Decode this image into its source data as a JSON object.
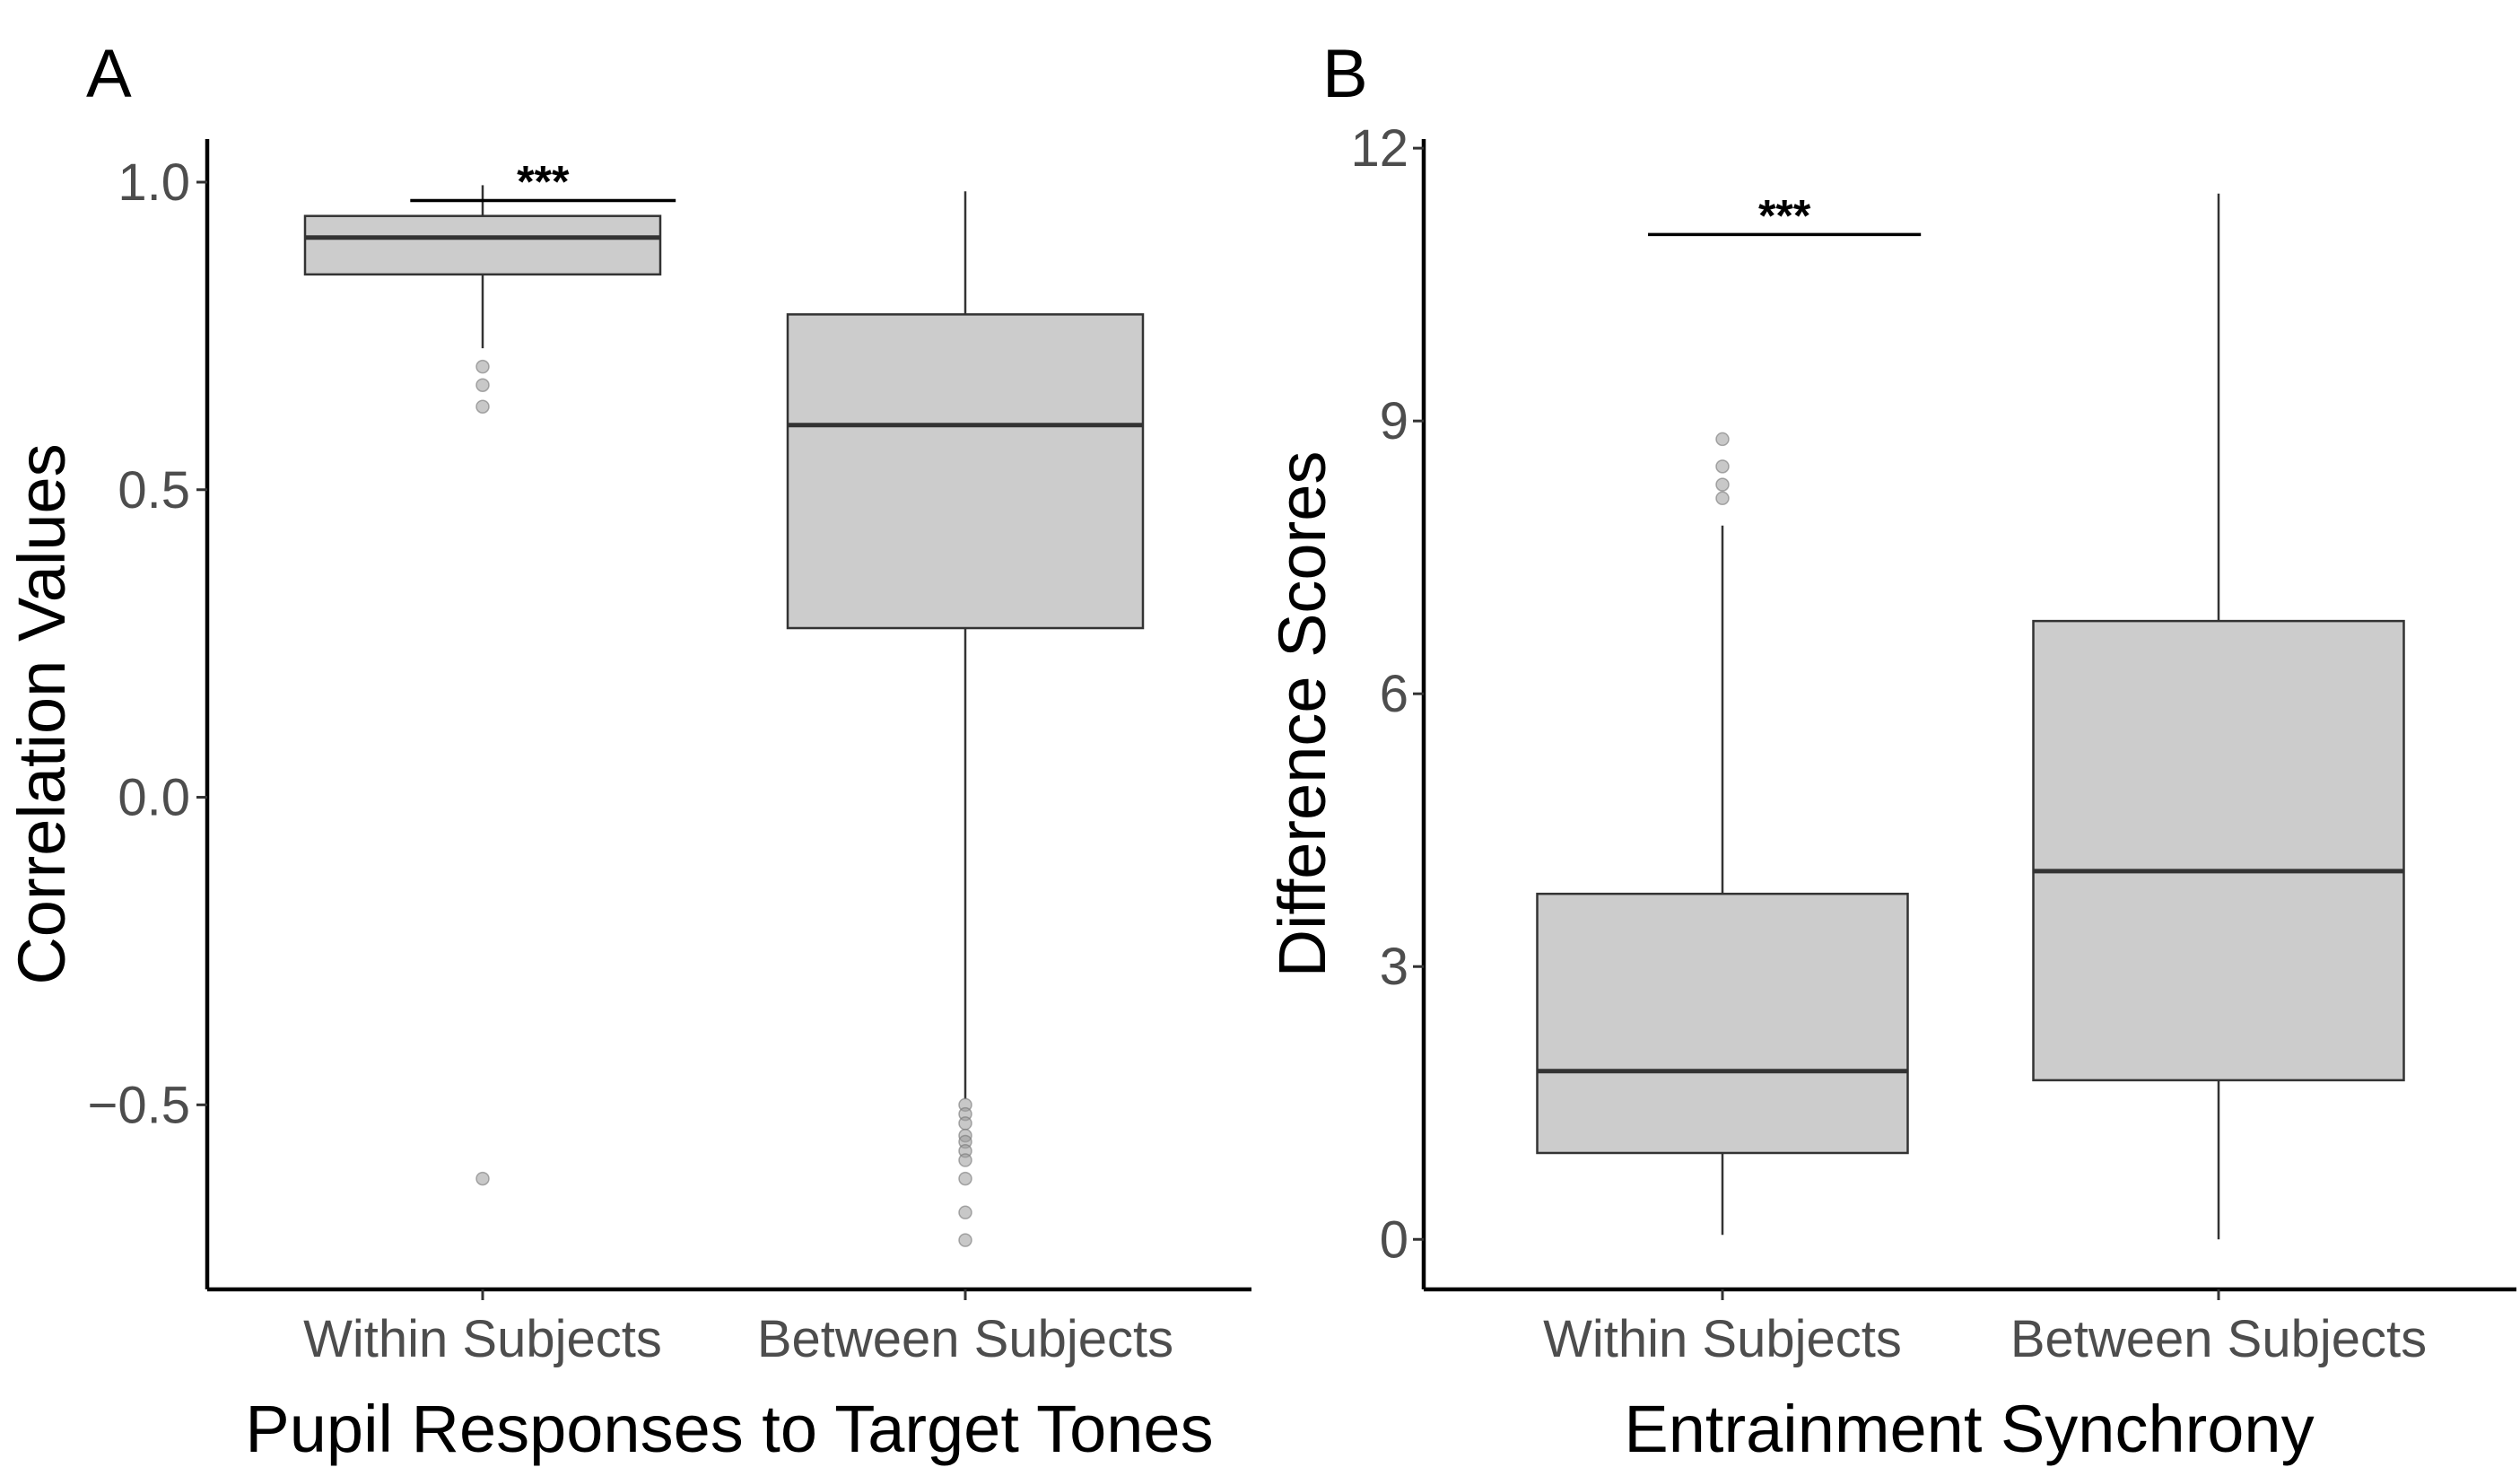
{
  "chart_data": [
    {
      "panel": "A",
      "type": "box",
      "xlabel": "Pupil Responses to Target Tones",
      "ylabel": "Correlation Values",
      "categories": [
        "Within Subjects",
        "Between Subjects"
      ],
      "ylim": [
        -0.8,
        1.07
      ],
      "yticks": [
        {
          "value": -0.5,
          "label": "−0.5"
        },
        {
          "value": 0.0,
          "label": "0.0"
        },
        {
          "value": 0.5,
          "label": "0.5"
        },
        {
          "value": 1.0,
          "label": "1.0"
        }
      ],
      "boxes": [
        {
          "category": "Within Subjects",
          "whisker_low": 0.73,
          "q1": 0.85,
          "median": 0.91,
          "q3": 0.945,
          "whisker_high": 0.995,
          "outliers": [
            0.7,
            0.67,
            0.635,
            -0.62
          ]
        },
        {
          "category": "Between Subjects",
          "whisker_low": -0.49,
          "q1": 0.275,
          "median": 0.605,
          "q3": 0.785,
          "whisker_high": 0.985,
          "outliers": [
            -0.5,
            -0.515,
            -0.53,
            -0.55,
            -0.56,
            -0.575,
            -0.59,
            -0.62,
            -0.675,
            -0.72
          ]
        }
      ],
      "significance": {
        "label": "***",
        "y": 0.97,
        "from": 0.55,
        "to": 1.45
      },
      "grid": false
    },
    {
      "panel": "B",
      "type": "box",
      "xlabel": "Entrainment Synchrony",
      "ylabel": "Difference Scores",
      "categories": [
        "Within Subjects",
        "Between Subjects"
      ],
      "ylim": [
        -0.55,
        12.1
      ],
      "yticks": [
        {
          "value": 0,
          "label": "0"
        },
        {
          "value": 3,
          "label": "3"
        },
        {
          "value": 6,
          "label": "6"
        },
        {
          "value": 9,
          "label": "9"
        },
        {
          "value": 12,
          "label": "12"
        }
      ],
      "boxes": [
        {
          "category": "Within Subjects",
          "whisker_low": 0.05,
          "q1": 0.95,
          "median": 1.85,
          "q3": 3.8,
          "whisker_high": 7.85,
          "outliers": [
            8.15,
            8.3,
            8.5,
            8.8
          ]
        },
        {
          "category": "Between Subjects",
          "whisker_low": 0.0,
          "q1": 1.75,
          "median": 4.05,
          "q3": 6.8,
          "whisker_high": 11.5,
          "outliers": []
        }
      ],
      "significance": {
        "label": "***",
        "y": 11.05,
        "from": 0.55,
        "to": 1.45
      },
      "grid": false
    }
  ]
}
